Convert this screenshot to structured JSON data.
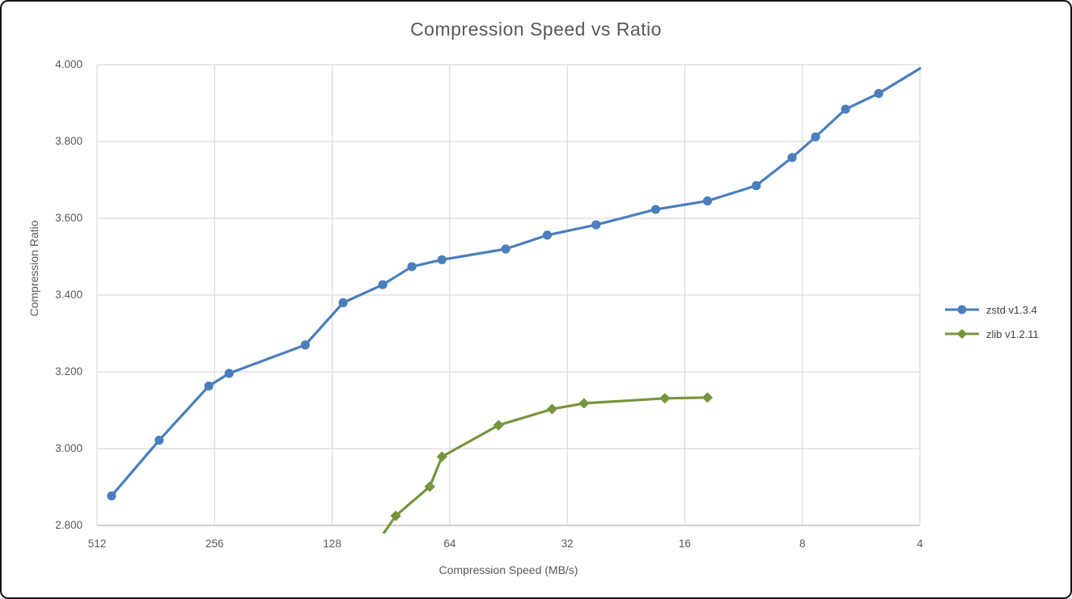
{
  "chart_data": {
    "type": "line",
    "title": "Compression Speed vs Ratio",
    "xlabel": "Compression Speed (MB/s)",
    "ylabel": "Compression Ratio",
    "grid": true,
    "legend_position": "right",
    "x_axis": {
      "scale": "log2",
      "reversed": true,
      "range": [
        512,
        4
      ],
      "ticks": [
        512,
        256,
        128,
        64,
        32,
        16,
        8,
        4
      ]
    },
    "y_axis": {
      "range": [
        2.8,
        4.0
      ],
      "tick_step": 0.2,
      "tick_labels": [
        "4.000",
        "3.800",
        "3.600",
        "3.400",
        "3.200",
        "3.000",
        "2.800"
      ]
    },
    "series": [
      {
        "name": "zstd v1.3.4",
        "color": "#4A7EBD",
        "marker": "circle",
        "points": [
          [
            470,
            2.877
          ],
          [
            355,
            3.022
          ],
          [
            265,
            3.163
          ],
          [
            235,
            3.196
          ],
          [
            150,
            3.27
          ],
          [
            120,
            3.38
          ],
          [
            95,
            3.427
          ],
          [
            80,
            3.474
          ],
          [
            67,
            3.492
          ],
          [
            46,
            3.52
          ],
          [
            36,
            3.556
          ],
          [
            27,
            3.583
          ],
          [
            19,
            3.623
          ],
          [
            14,
            3.645
          ],
          [
            10.5,
            3.685
          ],
          [
            8.5,
            3.758
          ],
          [
            7.4,
            3.812
          ],
          [
            6.2,
            3.884
          ],
          [
            5.1,
            3.925
          ]
        ],
        "clipped_end_point": [
          4.0,
          3.99
        ]
      },
      {
        "name": "zlib v1.2.11",
        "color": "#76953D",
        "marker": "diamond",
        "clipped_start_point": [
          100,
          2.743
        ],
        "points": [
          [
            88,
            2.825
          ],
          [
            72,
            2.901
          ],
          [
            67,
            2.979
          ],
          [
            48,
            3.061
          ],
          [
            35,
            3.103
          ],
          [
            29,
            3.118
          ],
          [
            18,
            3.131
          ],
          [
            14,
            3.133
          ]
        ]
      }
    ],
    "style": {
      "text_color": "#595959",
      "legend_text_color": "#404040",
      "grid_color": "#D9D9D9",
      "axis_line_color": "#BFBFBF",
      "background": "#FFFFFF"
    }
  }
}
